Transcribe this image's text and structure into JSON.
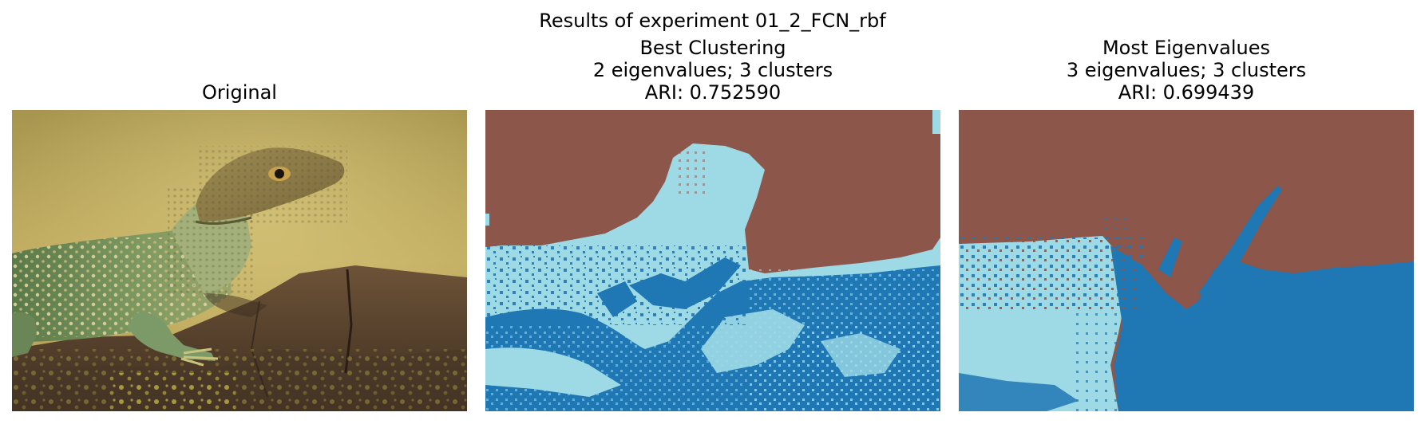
{
  "figure": {
    "suptitle": "Results of experiment 01_2_FCN_rbf"
  },
  "panels": [
    {
      "title": "Original",
      "content": "photograph of a collared lizard on a rock"
    },
    {
      "title_lines": [
        "Best Clustering",
        "2 eigenvalues; 3 clusters",
        "ARI: 0.752590"
      ]
    },
    {
      "title_lines": [
        "Most Eigenvalues",
        "3 eigenvalues; 3 clusters",
        "ARI: 0.699439"
      ]
    }
  ],
  "colors": {
    "cluster_brown": "#8c564b",
    "cluster_light_blue": "#9edae5",
    "cluster_blue": "#1f77b4",
    "photo_background": "#bda85a",
    "rock": "#5a4430",
    "lizard_green": "#6f8f5a"
  }
}
